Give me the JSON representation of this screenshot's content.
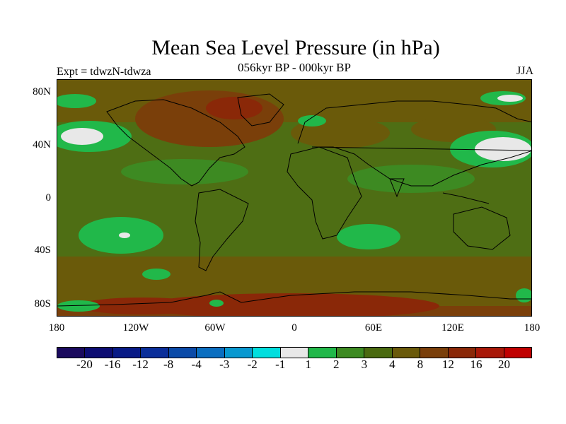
{
  "title": "Mean Sea Level Pressure (in hPa)",
  "subtitle": "056kyr BP - 000kyr BP",
  "left_label": "Expt = tdwzN-tdwza",
  "right_label": "JJA",
  "lat_labels": [
    "80N",
    "40N",
    "0",
    "40S",
    "80S"
  ],
  "lon_labels": [
    "180",
    "120W",
    "60W",
    "0",
    "60E",
    "120E",
    "180"
  ],
  "colorbar": {
    "colors": [
      "#1a0a5e",
      "#0d0d73",
      "#081a86",
      "#0a2e9a",
      "#0a4aa8",
      "#0a6ec0",
      "#0898d0",
      "#00dede",
      "#e8e8e8",
      "#21b84a",
      "#3d8a22",
      "#4a6a10",
      "#6a5a0a",
      "#7a3f0a",
      "#8a2808",
      "#a81808",
      "#c00000"
    ],
    "labels": [
      "-20",
      "-16",
      "-12",
      "-8",
      "-4",
      "-3",
      "-2",
      "-1",
      "1",
      "2",
      "3",
      "4",
      "8",
      "12",
      "16",
      "20"
    ]
  },
  "map_colors": {
    "base": "#4e6e14",
    "light_green": "#21b84a",
    "mid_green": "#3d8a22",
    "olive": "#6a5a0a",
    "brown": "#7a3f0a",
    "dark_red": "#8a2808",
    "white": "#e8e8e8"
  }
}
